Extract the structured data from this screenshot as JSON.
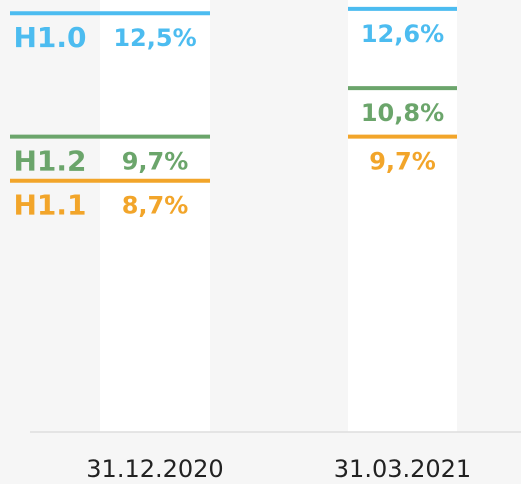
{
  "chart_data": {
    "type": "level",
    "categories": [
      "31.12.2020",
      "31.03.2021"
    ],
    "ylim": [
      3,
      12.8
    ],
    "series": [
      {
        "name": "H1.0",
        "color": "#4cbcf0",
        "values": [
          12.5,
          12.6
        ],
        "value_labels": [
          "12,5%",
          "12,6%"
        ]
      },
      {
        "name": "H1.2",
        "color": "#6ba56b",
        "values": [
          9.7,
          10.8
        ],
        "value_labels": [
          "9,7%",
          "10,8%"
        ]
      },
      {
        "name": "H1.1",
        "color": "#f2a52a",
        "values": [
          8.7,
          9.7
        ],
        "value_labels": [
          "8,7%",
          "9,7%"
        ]
      }
    ]
  }
}
